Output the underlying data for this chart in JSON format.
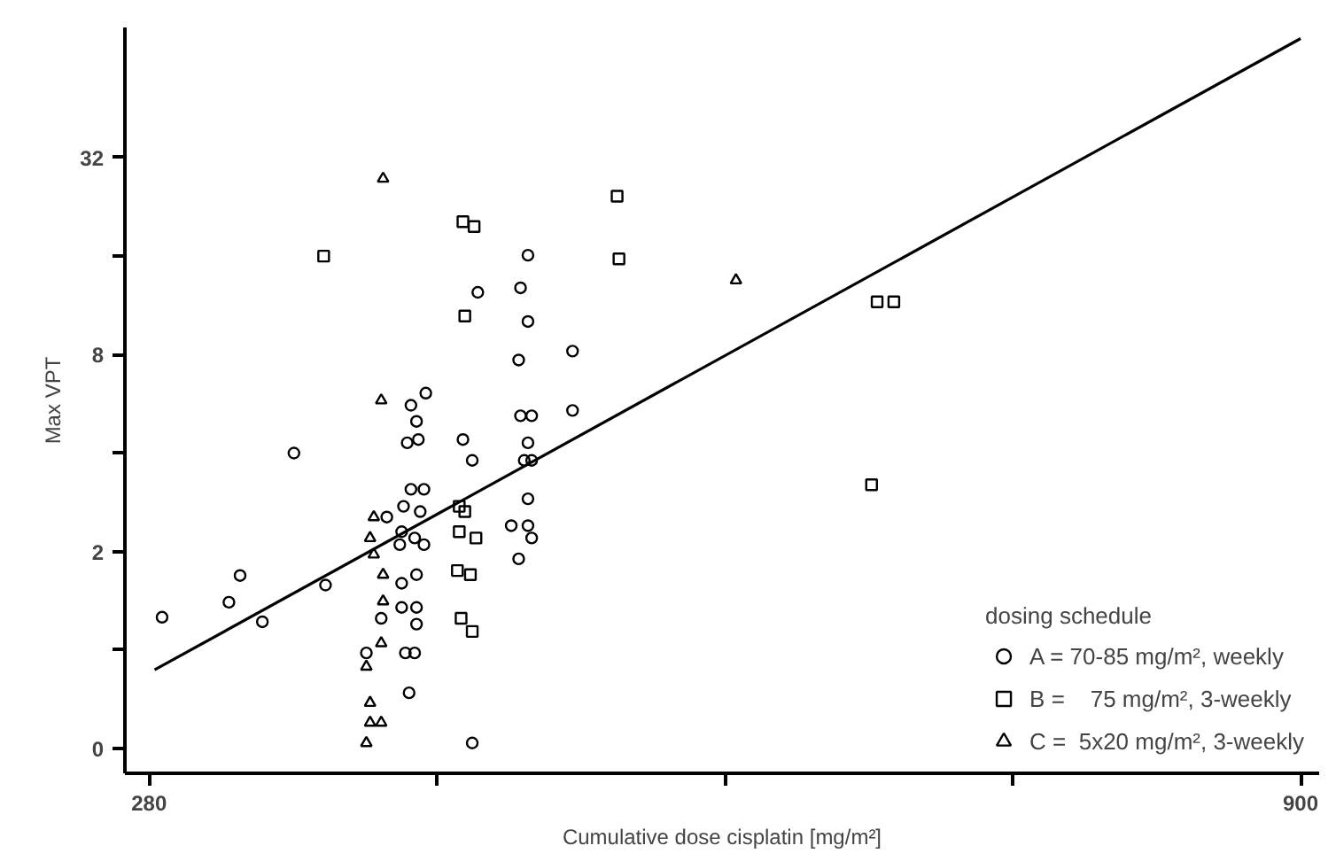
{
  "chart_data": {
    "type": "scatter",
    "xlabel": "Cumulative dose cisplatin [mg/m²]",
    "ylabel": "Max VPT",
    "legend_title": "dosing schedule",
    "legend": "bottom right",
    "grid": false,
    "log": "y",
    "xlim": [
      267,
      910
    ],
    "xticks": [
      280,
      {
        "value": 435,
        "label": null
      },
      {
        "value": 590,
        "label": null
      },
      {
        "value": 745,
        "label": null
      },
      900
    ],
    "ylim": [
      0.42,
      80
    ],
    "yticks": [
      {
        "value": 0.5,
        "label": "0"
      },
      {
        "value": 1,
        "label": null
      },
      2,
      {
        "value": 4,
        "label": null
      },
      8,
      {
        "value": 16,
        "label": null
      },
      32
    ],
    "series": [
      {
        "name": "A = 70-85 mg/m², weekly",
        "color": "#000000",
        "marker": "circle",
        "x": [
          287,
          323,
          329,
          341,
          358,
          375,
          429,
          421,
          424,
          419,
          425,
          421,
          428,
          417,
          426,
          416,
          423,
          428,
          415,
          408,
          416,
          424,
          405,
          416,
          424,
          424,
          397,
          418,
          423,
          420,
          454,
          449,
          454,
          457,
          480,
          484,
          484,
          479,
          508,
          508,
          480,
          486,
          484,
          482,
          486,
          484,
          475,
          484,
          486,
          479
        ],
        "values": [
          1.26,
          1.4,
          1.69,
          1.22,
          4.0,
          1.58,
          6.1,
          5.6,
          5.0,
          4.3,
          4.4,
          3.1,
          3.1,
          2.75,
          2.65,
          2.3,
          2.2,
          2.1,
          2.1,
          2.55,
          1.6,
          1.7,
          1.25,
          1.35,
          1.35,
          1.2,
          0.98,
          0.98,
          0.98,
          0.74,
          0.52,
          4.4,
          3.8,
          12.4,
          12.8,
          16.1,
          10.1,
          7.7,
          8.2,
          5.4,
          5.2,
          5.2,
          4.3,
          3.8,
          3.8,
          2.9,
          2.4,
          2.4,
          2.2,
          1.9
        ]
      },
      {
        "name": "B =    75 mg/m², 3-weekly",
        "color": "#000000",
        "marker": "square",
        "x": [
          374,
          449,
          455,
          532,
          533,
          450,
          447,
          450,
          447,
          456,
          446,
          453,
          448,
          454,
          669,
          672,
          681
        ],
        "values": [
          16,
          20.4,
          19.7,
          24.4,
          15.7,
          10.5,
          2.75,
          2.65,
          2.3,
          2.2,
          1.75,
          1.7,
          1.25,
          1.14,
          3.2,
          11.6,
          11.6
        ]
      },
      {
        "name": "C =  5x20 mg/m², 3-weekly",
        "color": "#000000",
        "marker": "triangle",
        "x": [
          406,
          405,
          401,
          399,
          401,
          406,
          406,
          405,
          397,
          399,
          399,
          405,
          397,
          596
        ],
        "values": [
          27.6,
          5.8,
          2.55,
          2.2,
          1.96,
          1.7,
          1.41,
          1.05,
          0.89,
          0.69,
          0.6,
          0.6,
          0.52,
          13.5
        ]
      },
      {
        "type": "line",
        "color": "#000000",
        "x": [
          283,
          900
        ],
        "values": [
          0.87,
          74
        ]
      }
    ]
  }
}
